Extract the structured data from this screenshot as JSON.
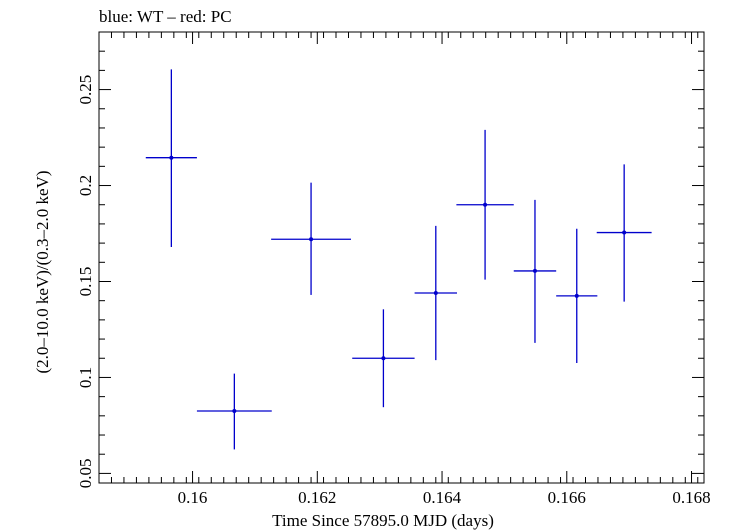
{
  "chart_data": {
    "type": "scatter",
    "title": "blue: WT – red: PC",
    "xlabel": "Time Since 57895.0 MJD (days)",
    "ylabel": "(2.0–10.0 keV)/(0.3–2.0 keV)",
    "xlim": [
      0.1585,
      0.1682
    ],
    "ylim": [
      0.045,
      0.28
    ],
    "x_ticks": [
      0.16,
      0.162,
      0.164,
      0.166,
      0.168
    ],
    "x_tick_labels": [
      "0.16",
      "0.162",
      "0.164",
      "0.166",
      "0.168"
    ],
    "y_ticks": [
      0.05,
      0.1,
      0.15,
      0.2,
      0.25
    ],
    "y_tick_labels": [
      "0.05",
      "0.1",
      "0.15",
      "0.2",
      "0.25"
    ],
    "grid": false,
    "series": [
      {
        "color": "#0000cc",
        "points": [
          {
            "x": 0.15966,
            "xerr": 0.00041,
            "y": 0.2145,
            "ylo": 0.168,
            "yhi": 0.2605
          },
          {
            "x": 0.16067,
            "xerr": 0.0006,
            "y": 0.0825,
            "ylo": 0.0625,
            "yhi": 0.102
          },
          {
            "x": 0.1619,
            "xerr": 0.00064,
            "y": 0.172,
            "ylo": 0.143,
            "yhi": 0.2015
          },
          {
            "x": 0.16306,
            "xerr": 0.0005,
            "y": 0.11,
            "ylo": 0.0845,
            "yhi": 0.1355
          },
          {
            "x": 0.1639,
            "xerr": 0.00034,
            "y": 0.144,
            "ylo": 0.109,
            "yhi": 0.179
          },
          {
            "x": 0.16469,
            "xerr": 0.00046,
            "y": 0.19,
            "ylo": 0.151,
            "yhi": 0.229
          },
          {
            "x": 0.16549,
            "xerr": 0.00034,
            "y": 0.1555,
            "ylo": 0.118,
            "yhi": 0.1925
          },
          {
            "x": 0.16616,
            "xerr": 0.00033,
            "y": 0.1425,
            "ylo": 0.1075,
            "yhi": 0.1775
          },
          {
            "x": 0.16692,
            "xerr": 0.00044,
            "y": 0.1755,
            "ylo": 0.1395,
            "yhi": 0.211
          }
        ]
      }
    ]
  }
}
